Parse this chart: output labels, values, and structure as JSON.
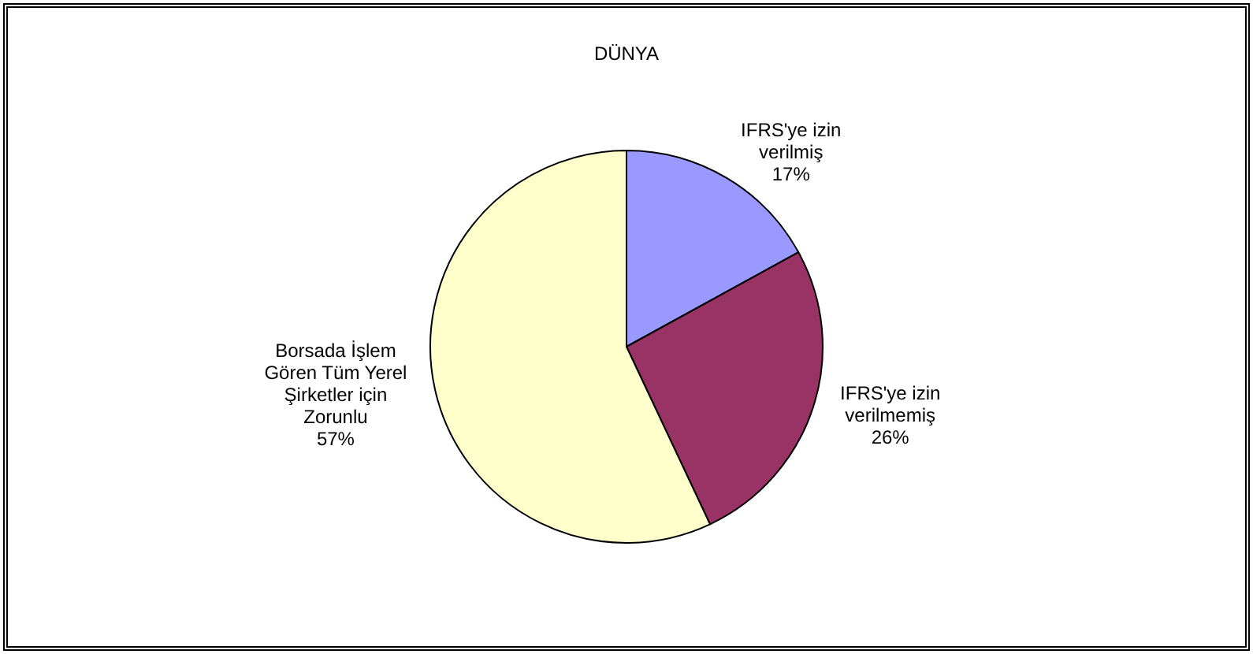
{
  "chart_data": {
    "type": "pie",
    "title": "DÜNYA",
    "categories": [
      "IFRS'ye izin verilmiş",
      "IFRS'ye izin verilmemiş",
      "Borsada İşlem Gören Tüm Yerel Şirketler için Zorunlu"
    ],
    "values": [
      17,
      26,
      57
    ],
    "colors": [
      "#9999ff",
      "#993366",
      "#ffffcc"
    ],
    "value_labels": [
      "17%",
      "26%",
      "57%"
    ],
    "legend": false
  }
}
